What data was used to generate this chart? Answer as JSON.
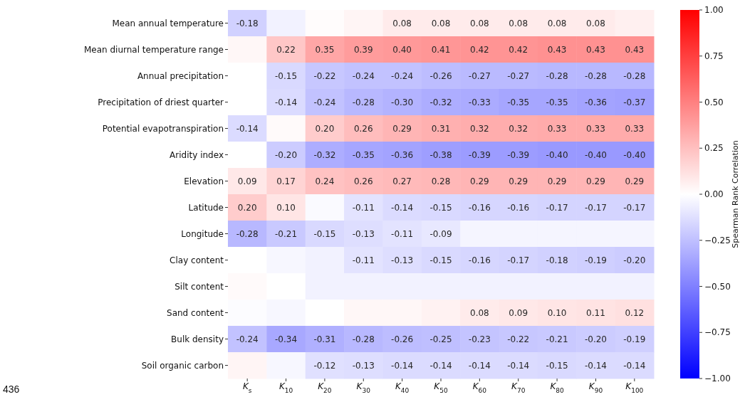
{
  "chart_data": {
    "type": "heatmap",
    "clabel": "Spearman Rank Correlation",
    "annotations": [
      "436"
    ],
    "categories": [
      "K$_{s}$",
      "K$_{10}$",
      "K$_{20}$",
      "K$_{30}$",
      "K$_{40}$",
      "K$_{50}$",
      "K$_{60}$",
      "K$_{70}$",
      "K$_{80}$",
      "K$_{90}$",
      "K$_{100}$"
    ],
    "y_categories": [
      "Mean annual temperature",
      "Mean diurnal temperature range",
      "Annual precipitation",
      "Precipitation of driest quarter",
      "Potential evapotranspiration",
      "Aridity index",
      "Elevation",
      "Latitude",
      "Longitude",
      "Clay content",
      "Silt content",
      "Sand content",
      "Bulk density",
      "Soil organic carbon"
    ],
    "cells": [
      [
        -0.18,
        -0.05,
        0.01,
        0.04,
        0.08,
        0.08,
        0.08,
        0.08,
        0.08,
        0.08,
        0.06
      ],
      [
        0.03,
        0.22,
        0.35,
        0.39,
        0.4,
        0.41,
        0.42,
        0.42,
        0.43,
        0.43,
        0.43
      ],
      [
        0.0,
        -0.15,
        -0.22,
        -0.24,
        -0.24,
        -0.26,
        -0.27,
        -0.27,
        -0.28,
        -0.28,
        -0.28
      ],
      [
        0.0,
        -0.14,
        -0.24,
        -0.28,
        -0.3,
        -0.32,
        -0.33,
        -0.35,
        -0.35,
        -0.36,
        -0.37
      ],
      [
        -0.14,
        0.02,
        0.2,
        0.26,
        0.29,
        0.31,
        0.32,
        0.32,
        0.33,
        0.33,
        0.33
      ],
      [
        0.0,
        -0.2,
        -0.32,
        -0.35,
        -0.36,
        -0.38,
        -0.39,
        -0.39,
        -0.4,
        -0.4,
        -0.4
      ],
      [
        0.09,
        0.17,
        0.24,
        0.26,
        0.27,
        0.28,
        0.29,
        0.29,
        0.29,
        0.29,
        0.29
      ],
      [
        0.2,
        0.1,
        -0.02,
        -0.11,
        -0.14,
        -0.15,
        -0.16,
        -0.16,
        -0.17,
        -0.17,
        -0.17
      ],
      [
        -0.28,
        -0.21,
        -0.15,
        -0.13,
        -0.11,
        -0.09,
        -0.04,
        -0.04,
        -0.04,
        -0.04,
        -0.04
      ],
      [
        0.0,
        -0.03,
        -0.05,
        -0.11,
        -0.13,
        -0.15,
        -0.16,
        -0.17,
        -0.18,
        -0.19,
        -0.2
      ],
      [
        0.02,
        0.0,
        -0.05,
        -0.05,
        -0.05,
        -0.05,
        -0.05,
        -0.05,
        -0.05,
        -0.05,
        -0.05
      ],
      [
        -0.01,
        -0.03,
        0.0,
        0.03,
        0.03,
        0.05,
        0.08,
        0.09,
        0.1,
        0.11,
        0.12
      ],
      [
        -0.24,
        -0.34,
        -0.31,
        -0.28,
        -0.26,
        -0.25,
        -0.23,
        -0.22,
        -0.21,
        -0.2,
        -0.19
      ],
      [
        0.04,
        -0.03,
        -0.12,
        -0.13,
        -0.14,
        -0.14,
        -0.14,
        -0.14,
        -0.15,
        -0.14,
        -0.14
      ]
    ],
    "cell_labels": [
      [
        "-0.18",
        null,
        null,
        null,
        "0.08",
        "0.08",
        "0.08",
        "0.08",
        "0.08",
        "0.08",
        null
      ],
      [
        null,
        "0.22",
        "0.35",
        "0.39",
        "0.40",
        "0.41",
        "0.42",
        "0.42",
        "0.43",
        "0.43",
        "0.43"
      ],
      [
        null,
        "-0.15",
        "-0.22",
        "-0.24",
        "-0.24",
        "-0.26",
        "-0.27",
        "-0.27",
        "-0.28",
        "-0.28",
        "-0.28"
      ],
      [
        null,
        "-0.14",
        "-0.24",
        "-0.28",
        "-0.30",
        "-0.32",
        "-0.33",
        "-0.35",
        "-0.35",
        "-0.36",
        "-0.37"
      ],
      [
        "-0.14",
        null,
        "0.20",
        "0.26",
        "0.29",
        "0.31",
        "0.32",
        "0.32",
        "0.33",
        "0.33",
        "0.33"
      ],
      [
        null,
        "-0.20",
        "-0.32",
        "-0.35",
        "-0.36",
        "-0.38",
        "-0.39",
        "-0.39",
        "-0.40",
        "-0.40",
        "-0.40"
      ],
      [
        "0.09",
        "0.17",
        "0.24",
        "0.26",
        "0.27",
        "0.28",
        "0.29",
        "0.29",
        "0.29",
        "0.29",
        "0.29"
      ],
      [
        "0.20",
        "0.10",
        null,
        "-0.11",
        "-0.14",
        "-0.15",
        "-0.16",
        "-0.16",
        "-0.17",
        "-0.17",
        "-0.17"
      ],
      [
        "-0.28",
        "-0.21",
        "-0.15",
        "-0.13",
        "-0.11",
        "-0.09",
        null,
        null,
        null,
        null,
        null
      ],
      [
        null,
        null,
        null,
        "-0.11",
        "-0.13",
        "-0.15",
        "-0.16",
        "-0.17",
        "-0.18",
        "-0.19",
        "-0.20"
      ],
      [
        null,
        null,
        null,
        null,
        null,
        null,
        null,
        null,
        null,
        null,
        null
      ],
      [
        null,
        null,
        null,
        null,
        null,
        null,
        "0.08",
        "0.09",
        "0.10",
        "0.11",
        "0.12"
      ],
      [
        "-0.24",
        "-0.34",
        "-0.31",
        "-0.28",
        "-0.26",
        "-0.25",
        "-0.23",
        "-0.22",
        "-0.21",
        "-0.20",
        "-0.19"
      ],
      [
        null,
        null,
        "-0.12",
        "-0.13",
        "-0.14",
        "-0.14",
        "-0.14",
        "-0.14",
        "-0.15",
        "-0.14",
        "-0.14"
      ]
    ],
    "clim": [
      -1,
      1
    ],
    "cticks": [
      {
        "value": 1,
        "label": "1.00"
      },
      {
        "value": 0.75,
        "label": "0.75"
      },
      {
        "value": 0.5,
        "label": "0.50"
      },
      {
        "value": 0.25,
        "label": "0.25"
      },
      {
        "value": 0,
        "label": "0.00"
      },
      {
        "value": -0.25,
        "label": "−0.25"
      },
      {
        "value": -0.5,
        "label": "−0.50"
      },
      {
        "value": -0.75,
        "label": "−0.75"
      },
      {
        "value": -1,
        "label": "−1.00"
      }
    ]
  }
}
